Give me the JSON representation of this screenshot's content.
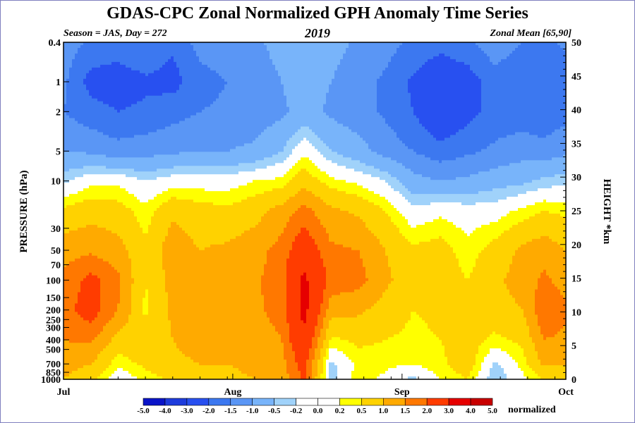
{
  "chart_data": {
    "type": "heatmap",
    "title": "GDAS-CPC Zonal Normalized GPH Anomaly Time Series",
    "subtitle_left": "Season = JAS, Day = 272",
    "subtitle_center": "2019",
    "subtitle_right": "Zonal Mean [65,90]",
    "ylabel_left": "PRESSURE (hPa)",
    "ylabel_right": "HEIGHT *km",
    "x_ticks": [
      {
        "label": "Jul",
        "day": 182
      },
      {
        "label": "Aug",
        "day": 213
      },
      {
        "label": "Sep",
        "day": 244
      },
      {
        "label": "Oct",
        "day": 274
      }
    ],
    "x_range": [
      182,
      274
    ],
    "pressure_ticks": [
      {
        "label": "0.4",
        "value": 0.4
      },
      {
        "label": "1",
        "value": 1
      },
      {
        "label": "2",
        "value": 2
      },
      {
        "label": "5",
        "value": 5
      },
      {
        "label": "10",
        "value": 10
      },
      {
        "label": "30",
        "value": 30
      },
      {
        "label": "50",
        "value": 50
      },
      {
        "label": "70",
        "value": 70
      },
      {
        "label": "100",
        "value": 100
      },
      {
        "label": "150",
        "value": 150
      },
      {
        "label": "200",
        "value": 200
      },
      {
        "label": "250",
        "value": 250
      },
      {
        "label": "300",
        "value": 300
      },
      {
        "label": "400",
        "value": 400
      },
      {
        "label": "500",
        "value": 500
      },
      {
        "label": "700",
        "value": 700
      },
      {
        "label": "850",
        "value": 850
      },
      {
        "label": "1000",
        "value": 1000
      }
    ],
    "pressure_range": [
      0.4,
      1000
    ],
    "height_ticks": [
      "0",
      "5",
      "10",
      "15",
      "20",
      "25",
      "30",
      "35",
      "40",
      "45",
      "50"
    ],
    "colorbar": {
      "unit": "normalized",
      "labels": [
        "-5.0",
        "-4.0",
        "-3.0",
        "-2.0",
        "-1.5",
        "-1.0",
        "-0.5",
        "-0.2",
        "0.0",
        "0.2",
        "0.5",
        "1.0",
        "1.5",
        "2.0",
        "3.0",
        "4.0",
        "5.0"
      ],
      "colors": [
        "#0a14c8",
        "#1e3cdc",
        "#2850f0",
        "#3c78f0",
        "#5a96f5",
        "#78b4fa",
        "#a0d2fa",
        "#ffffff",
        "#ffffff",
        "#ffff00",
        "#ffd200",
        "#ffaa00",
        "#ff7800",
        "#ff3c00",
        "#e60000",
        "#c80000"
      ]
    },
    "pattern_notes": "Approximate reconstruction: negative (blue) anomalies above ~5 hPa with a white band near 5-7 hPa, positive (yellow-orange-red) anomalies below 10 hPa, strongest red core around mid-August below ~10 hPa.",
    "columns": [
      {
        "day": 182,
        "levels": [
          -1.2,
          -1.4,
          -1.5,
          -1.0,
          -0.3,
          0.6,
          1.3,
          1.6,
          1.8,
          1.5,
          1.2,
          1.0
        ]
      },
      {
        "day": 187,
        "levels": [
          -1.6,
          -2.2,
          -1.8,
          -1.1,
          0.1,
          0.8,
          1.4,
          2.2,
          2.3,
          1.6,
          1.0,
          0.6
        ]
      },
      {
        "day": 192,
        "levels": [
          -1.7,
          -2.3,
          -2.0,
          -1.3,
          0.1,
          0.7,
          1.2,
          1.6,
          1.5,
          0.8,
          0.3,
          -0.1
        ]
      },
      {
        "day": 197,
        "levels": [
          -1.5,
          -2.1,
          -1.9,
          -1.2,
          -0.2,
          0.3,
          0.6,
          0.5,
          0.4,
          0.8,
          0.6,
          0.3
        ]
      },
      {
        "day": 202,
        "levels": [
          -1.9,
          -2.2,
          -1.7,
          -1.1,
          0.0,
          0.9,
          1.3,
          1.2,
          1.1,
          1.0,
          0.9,
          0.6
        ]
      },
      {
        "day": 207,
        "levels": [
          -1.3,
          -1.7,
          -1.5,
          -1.0,
          0.0,
          0.7,
          1.0,
          1.2,
          1.1,
          1.2,
          1.0,
          0.8
        ]
      },
      {
        "day": 212,
        "levels": [
          -1.2,
          -1.5,
          -1.4,
          -1.0,
          0.0,
          0.6,
          1.1,
          1.2,
          1.2,
          1.1,
          1.0,
          0.9
        ]
      },
      {
        "day": 217,
        "levels": [
          -1.1,
          -1.3,
          -1.3,
          -0.9,
          0.2,
          0.8,
          1.3,
          1.4,
          1.4,
          1.2,
          1.1,
          1.0
        ]
      },
      {
        "day": 222,
        "levels": [
          -0.8,
          -1.0,
          -1.1,
          -0.5,
          0.3,
          1.2,
          1.7,
          1.8,
          1.7,
          1.5,
          1.3,
          1.2
        ]
      },
      {
        "day": 226,
        "levels": [
          -0.6,
          -0.7,
          -0.8,
          0.1,
          0.8,
          1.7,
          2.5,
          3.2,
          3.3,
          2.8,
          2.3,
          2.1
        ]
      },
      {
        "day": 231,
        "levels": [
          -0.8,
          -1.0,
          -1.1,
          -0.5,
          0.3,
          1.1,
          1.6,
          1.8,
          1.2,
          0.4,
          -0.3,
          -0.4
        ]
      },
      {
        "day": 236,
        "levels": [
          -1.1,
          -1.3,
          -1.3,
          -0.8,
          0.1,
          0.9,
          1.5,
          1.7,
          1.1,
          0.6,
          0.3,
          0.4
        ]
      },
      {
        "day": 241,
        "levels": [
          -1.3,
          -1.6,
          -1.6,
          -1.2,
          -0.2,
          0.5,
          1.0,
          1.1,
          0.8,
          0.5,
          0.3,
          0.1
        ]
      },
      {
        "day": 246,
        "levels": [
          -1.6,
          -2.1,
          -2.0,
          -1.5,
          -0.8,
          -0.1,
          0.6,
          0.7,
          0.5,
          0.4,
          0.2,
          -0.3
        ]
      },
      {
        "day": 251,
        "levels": [
          -1.8,
          -2.5,
          -2.6,
          -1.8,
          -1.0,
          0.1,
          0.7,
          0.8,
          0.6,
          0.5,
          0.4,
          0.2
        ]
      },
      {
        "day": 256,
        "levels": [
          -1.6,
          -2.3,
          -2.2,
          -1.6,
          -0.9,
          0.0,
          0.3,
          0.5,
          0.6,
          0.7,
          0.8,
          0.5
        ]
      },
      {
        "day": 261,
        "levels": [
          -1.2,
          -1.7,
          -1.8,
          -1.4,
          -0.7,
          0.0,
          0.7,
          0.9,
          0.8,
          0.4,
          -0.3,
          -0.5
        ]
      },
      {
        "day": 266,
        "levels": [
          -1.5,
          -1.9,
          -1.8,
          -1.2,
          -0.6,
          0.3,
          1.1,
          1.2,
          1.0,
          0.6,
          0.3,
          0.1
        ]
      },
      {
        "day": 270,
        "levels": [
          -1.6,
          -2.0,
          -1.9,
          -1.3,
          -0.4,
          0.5,
          1.3,
          1.6,
          1.9,
          1.5,
          1.1,
          0.5
        ]
      },
      {
        "day": 274,
        "levels": [
          -1.4,
          -1.8,
          -1.7,
          -1.1,
          -0.3,
          0.4,
          1.0,
          1.3,
          1.6,
          1.4,
          1.0,
          0.6
        ]
      }
    ],
    "level_pressures": [
      0.4,
      1,
      2,
      5,
      10,
      20,
      50,
      100,
      200,
      400,
      700,
      1000
    ]
  }
}
